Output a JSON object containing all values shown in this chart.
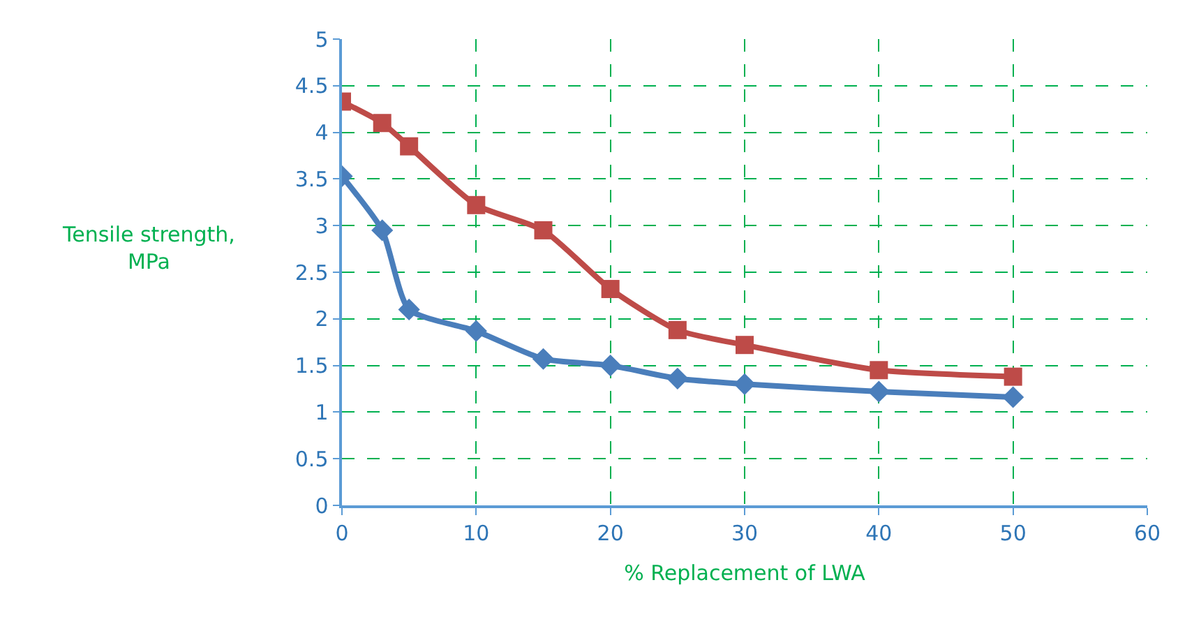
{
  "chart_data": {
    "type": "line",
    "xlabel": "% Replacement of LWA",
    "ylabel": "Tensile strength,\nMPa",
    "xlim": [
      0,
      60
    ],
    "xticks": [
      0,
      10,
      20,
      30,
      40,
      50,
      60
    ],
    "ylim": [
      0,
      5
    ],
    "yticks": [
      0,
      0.5,
      1,
      1.5,
      2,
      2.5,
      3,
      3.5,
      4,
      4.5,
      5
    ],
    "grid": true,
    "line_style": "solid",
    "series": [
      {
        "color": "#4a7ebb",
        "marker": "diamond",
        "x": [
          0,
          3,
          5,
          10,
          15,
          20,
          25,
          30,
          40,
          50
        ],
        "values": [
          3.53,
          2.95,
          2.1,
          1.87,
          1.57,
          1.5,
          1.36,
          1.3,
          1.22,
          1.16
        ]
      },
      {
        "color": "#be4b48",
        "marker": "square",
        "x": [
          0,
          3,
          5,
          10,
          15,
          20,
          25,
          30,
          40,
          50
        ],
        "values": [
          4.33,
          4.1,
          3.85,
          3.22,
          2.95,
          2.32,
          1.88,
          1.72,
          1.45,
          1.38
        ]
      }
    ]
  }
}
